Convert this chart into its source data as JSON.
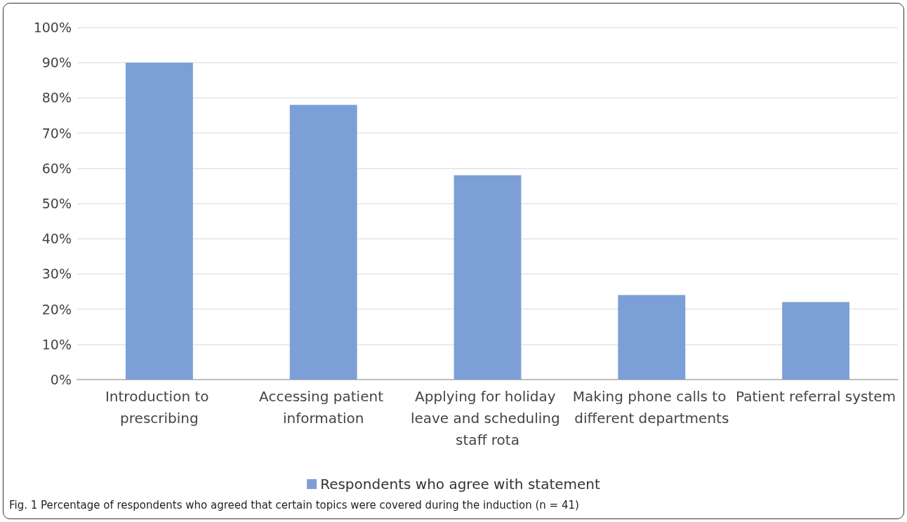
{
  "chart_data": {
    "type": "bar",
    "categories": [
      "Introduction to prescribing",
      "Accessing patient information",
      "Applying for holiday leave and scheduling staff rota",
      "Making phone calls to different departments",
      "Patient referral system"
    ],
    "series": [
      {
        "name": "Respondents who agree with statement",
        "color": "#7b9fd6",
        "values": [
          90,
          78,
          58,
          24,
          22
        ]
      }
    ],
    "ylim": [
      0,
      100
    ],
    "yticks": [
      {
        "value": 0,
        "label": "0%"
      },
      {
        "value": 10,
        "label": "10%"
      },
      {
        "value": 20,
        "label": "20%"
      },
      {
        "value": 30,
        "label": "30%"
      },
      {
        "value": 40,
        "label": "40%"
      },
      {
        "value": 50,
        "label": "50%"
      },
      {
        "value": 60,
        "label": "60%"
      },
      {
        "value": 70,
        "label": "70%"
      },
      {
        "value": 80,
        "label": "80%"
      },
      {
        "value": 90,
        "label": "90%"
      },
      {
        "value": 100,
        "label": "100%"
      }
    ],
    "grid": "y",
    "legend": "bottom",
    "annotations": [
      "Fig. 1 Percentage of respondents who agreed that certain topics were covered during the induction (n = 41)"
    ]
  }
}
